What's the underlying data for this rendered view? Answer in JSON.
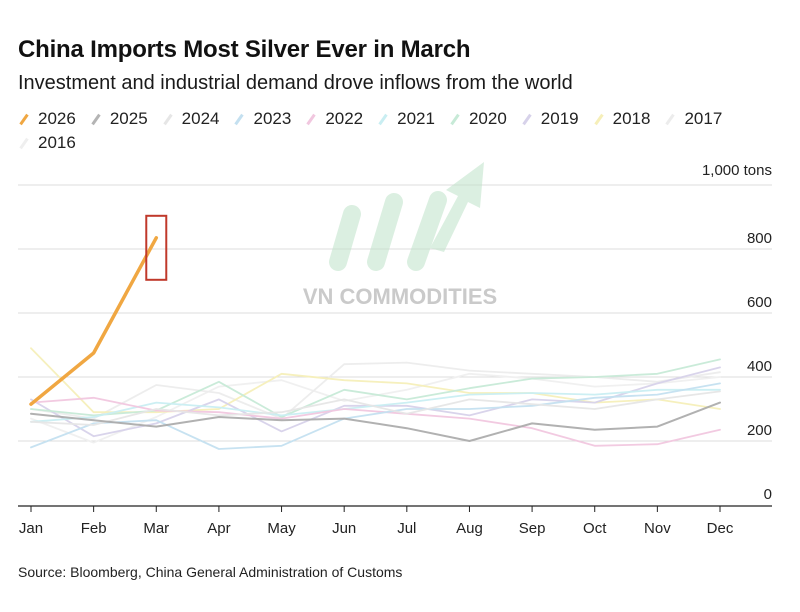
{
  "chart_data": {
    "type": "line",
    "title": "China Imports Most Silver Ever in March",
    "subtitle": "Investment and industrial demand drove inflows from the world",
    "unit_label": "1,000 tons",
    "source": "Source: Bloomberg, China General Administration of Customs",
    "watermark": "VN COMMODITIES",
    "categories": [
      "Jan",
      "Feb",
      "Mar",
      "Apr",
      "May",
      "Jun",
      "Jul",
      "Aug",
      "Sep",
      "Oct",
      "Nov",
      "Dec"
    ],
    "y_ticks": [
      "0",
      "200",
      "400",
      "600",
      "800"
    ],
    "ylim": [
      0,
      1000
    ],
    "grid": true,
    "legend_position": "top-left",
    "highlight": {
      "series": "2026",
      "category": "Mar"
    },
    "series": [
      {
        "name": "2026",
        "color": "#f0a742",
        "values": [
          315,
          475,
          835,
          null,
          null,
          null,
          null,
          null,
          null,
          null,
          null,
          null
        ]
      },
      {
        "name": "2025",
        "color": "#a9a9a9",
        "values": [
          285,
          265,
          245,
          275,
          265,
          270,
          240,
          200,
          255,
          235,
          245,
          320
        ]
      },
      {
        "name": "2024",
        "color": "#e6e6e6",
        "values": [
          260,
          250,
          300,
          280,
          290,
          330,
          285,
          330,
          315,
          300,
          330,
          355
        ]
      },
      {
        "name": "2023",
        "color": "#c4e0f0",
        "values": [
          180,
          255,
          265,
          175,
          185,
          270,
          300,
          300,
          310,
          335,
          345,
          380
        ]
      },
      {
        "name": "2022",
        "color": "#f1c7df",
        "values": [
          320,
          335,
          295,
          290,
          270,
          300,
          285,
          270,
          240,
          185,
          190,
          235
        ]
      },
      {
        "name": "2021",
        "color": "#c9eef2",
        "values": [
          260,
          275,
          320,
          305,
          280,
          300,
          320,
          345,
          350,
          345,
          360,
          360
        ]
      },
      {
        "name": "2020",
        "color": "#c7ead7",
        "values": [
          300,
          280,
          295,
          385,
          275,
          360,
          330,
          365,
          395,
          400,
          410,
          455
        ]
      },
      {
        "name": "2019",
        "color": "#d7d2ea",
        "values": [
          330,
          215,
          255,
          330,
          230,
          310,
          310,
          280,
          330,
          320,
          380,
          430
        ]
      },
      {
        "name": "2018",
        "color": "#f6efb9",
        "values": [
          490,
          290,
          290,
          300,
          410,
          390,
          380,
          350,
          350,
          320,
          330,
          300
        ]
      },
      {
        "name": "2017",
        "color": "#ececec",
        "values": [
          300,
          270,
          375,
          350,
          270,
          440,
          445,
          420,
          410,
          400,
          385,
          415
        ]
      },
      {
        "name": "2016",
        "color": "#efefef",
        "values": [
          270,
          195,
          275,
          370,
          390,
          325,
          360,
          410,
          395,
          370,
          380,
          400
        ]
      }
    ]
  }
}
